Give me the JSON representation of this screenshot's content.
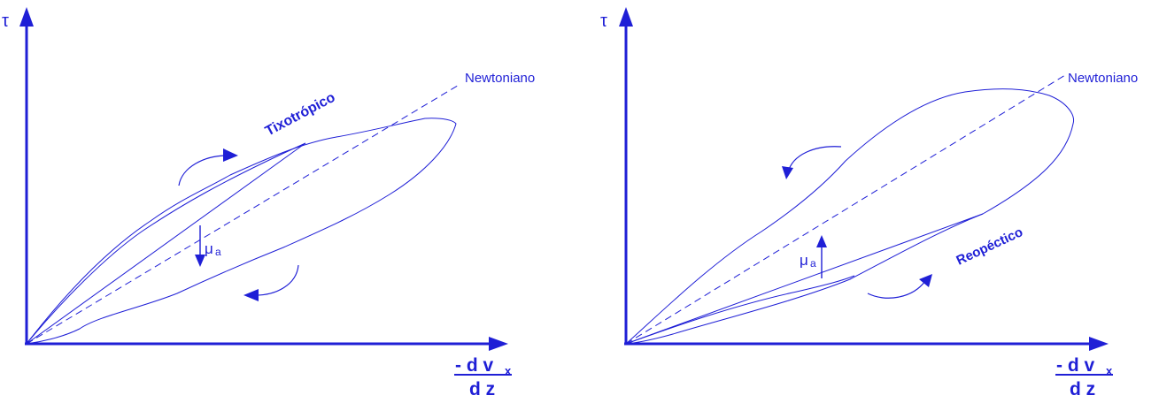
{
  "colors": {
    "ink": "#1f1fd6"
  },
  "left_panel": {
    "y_axis_label": "τ",
    "curve_label": "Tixotrópico",
    "newtonian_label": "Newtoniano",
    "viscosity_symbol": "μ",
    "viscosity_subscript": "a",
    "x_axis_numerator": "- d v",
    "x_axis_numerator_sub": "x",
    "x_axis_denominator": "d z"
  },
  "right_panel": {
    "y_axis_label": "τ",
    "curve_label": "Reopéctico",
    "newtonian_label": "Newtoniano",
    "viscosity_symbol": "μ",
    "viscosity_subscript": "a",
    "x_axis_numerator": "- d v",
    "x_axis_numerator_sub": "x",
    "x_axis_denominator": "d z"
  }
}
